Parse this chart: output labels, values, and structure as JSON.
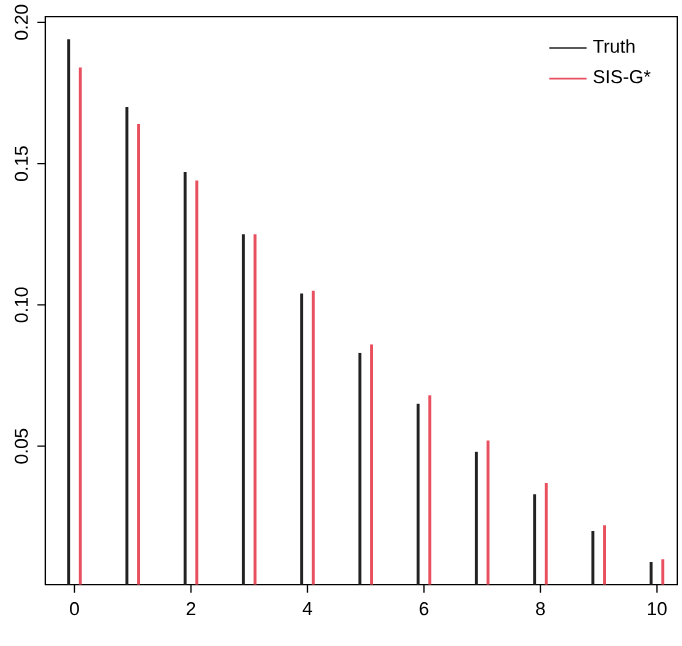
{
  "chart_data": {
    "type": "bar",
    "x": [
      0,
      1,
      2,
      3,
      4,
      5,
      6,
      7,
      8,
      9,
      10
    ],
    "series": [
      {
        "name": "Truth",
        "color": "#222222",
        "values": [
          0.194,
          0.17,
          0.147,
          0.125,
          0.104,
          0.083,
          0.065,
          0.048,
          0.033,
          0.02,
          0.009
        ]
      },
      {
        "name": "SIS-G*",
        "color": "#e8505f",
        "values": [
          0.184,
          0.164,
          0.144,
          0.125,
          0.105,
          0.086,
          0.068,
          0.052,
          0.037,
          0.022,
          0.01
        ]
      }
    ],
    "xlim": [
      -0.5,
      10.35
    ],
    "ylim": [
      0.001,
      0.202
    ],
    "xticks": [
      0,
      2,
      4,
      6,
      8,
      10
    ],
    "yticks": [
      0.05,
      {
        "value": 0.1,
        "label": "0.10"
      },
      0.15,
      {
        "value": 0.2,
        "label": "0.20"
      }
    ],
    "legend": "top right"
  }
}
